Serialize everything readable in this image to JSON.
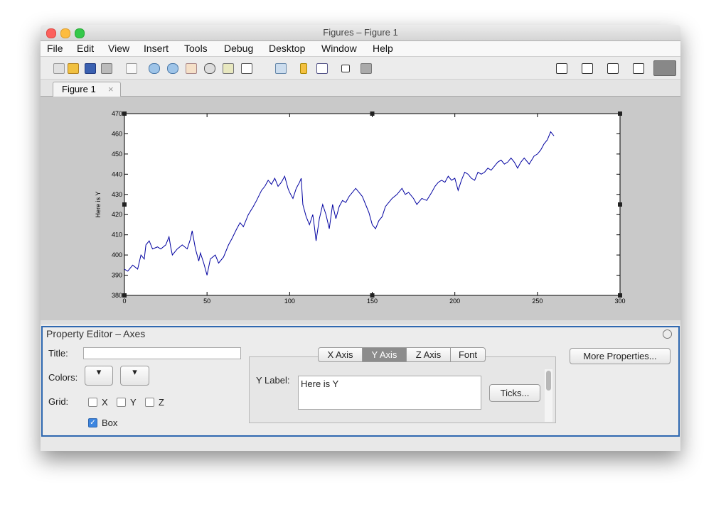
{
  "window": {
    "title": "Figures – Figure 1"
  },
  "menu": [
    "File",
    "Edit",
    "View",
    "Insert",
    "Tools",
    "Debug",
    "Desktop",
    "Window",
    "Help"
  ],
  "tabs": [
    "Figure 1"
  ],
  "chart_data": {
    "type": "line",
    "ylabel": "Here is Y",
    "x": [
      0,
      2,
      5,
      8,
      10,
      12,
      13,
      15,
      17,
      20,
      22,
      25,
      27,
      28,
      29,
      32,
      35,
      38,
      40,
      41,
      43,
      45,
      46,
      48,
      50,
      52,
      55,
      57,
      60,
      63,
      65,
      68,
      70,
      72,
      75,
      78,
      80,
      83,
      85,
      87,
      89,
      91,
      93,
      95,
      97,
      99,
      100,
      102,
      104,
      106,
      107,
      108,
      110,
      112,
      114,
      115,
      116,
      118,
      120,
      122,
      124,
      126,
      128,
      130,
      132,
      134,
      136,
      138,
      140,
      142,
      144,
      146,
      148,
      150,
      152,
      154,
      156,
      158,
      160,
      162,
      165,
      168,
      170,
      172,
      175,
      177,
      180,
      183,
      186,
      188,
      190,
      192,
      194,
      196,
      198,
      200,
      202,
      204,
      206,
      208,
      210,
      212,
      214,
      216,
      218,
      220,
      222,
      224,
      226,
      228,
      230,
      232,
      234,
      236,
      238,
      240,
      242,
      245,
      248,
      250,
      252,
      254,
      256,
      258,
      260
    ],
    "values": [
      393,
      392,
      395,
      393,
      400,
      398,
      405,
      407,
      403,
      404,
      403,
      405,
      409,
      404,
      400,
      403,
      405,
      403,
      408,
      412,
      403,
      397,
      401,
      396,
      390,
      398,
      400,
      396,
      399,
      405,
      408,
      413,
      416,
      414,
      420,
      424,
      427,
      432,
      434,
      437,
      435,
      438,
      434,
      436,
      439,
      433,
      431,
      428,
      433,
      436,
      438,
      425,
      419,
      415,
      420,
      414,
      407,
      418,
      425,
      420,
      413,
      425,
      418,
      424,
      427,
      426,
      429,
      431,
      433,
      431,
      429,
      425,
      421,
      415,
      413,
      417,
      419,
      424,
      426,
      428,
      430,
      433,
      430,
      431,
      428,
      425,
      428,
      427,
      431,
      434,
      436,
      437,
      436,
      439,
      437,
      438,
      432,
      437,
      441,
      440,
      438,
      437,
      441,
      440,
      441,
      443,
      442,
      444,
      446,
      447,
      445,
      446,
      448,
      446,
      443,
      446,
      448,
      445,
      449,
      450,
      452,
      455,
      457,
      461,
      459
    ],
    "color": "#0000a0",
    "xlim": [
      0,
      300
    ],
    "ylim": [
      380,
      470
    ],
    "xticks": [
      0,
      50,
      100,
      150,
      200,
      250,
      300
    ],
    "yticks": [
      380,
      390,
      400,
      410,
      420,
      430,
      440,
      450,
      460,
      470
    ],
    "grid": false,
    "box": true
  },
  "property_editor": {
    "title": "Property Editor – Axes",
    "title_label": "Title:",
    "colors_label": "Colors:",
    "grid_label": "Grid:",
    "grid_options": [
      "X",
      "Y",
      "Z"
    ],
    "box_label": "Box",
    "axis_tabs": [
      "X Axis",
      "Y Axis",
      "Z Axis",
      "Font"
    ],
    "ylabel_label": "Y Label:",
    "ylabel_value": "Here is Y",
    "ticks_button": "Ticks...",
    "more_button": "More Properties..."
  }
}
